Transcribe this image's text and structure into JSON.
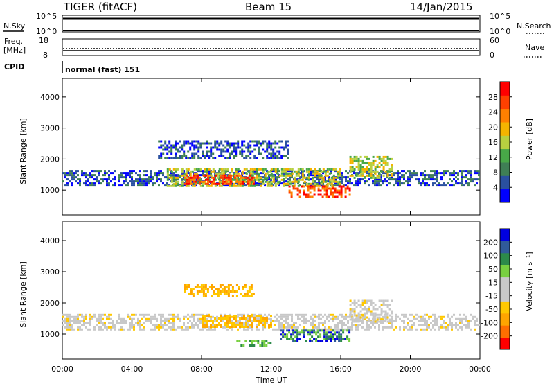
{
  "header": {
    "title": "TIGER (fitACF)",
    "beam": "Beam 15",
    "date": "14/Jan/2015"
  },
  "nsky": {
    "label": "N.Sky",
    "ticks": [
      "10^5",
      "10^0"
    ],
    "right_label": "N.Search",
    "right_ticks": [
      "10^5",
      "10^0"
    ]
  },
  "freq": {
    "label": "Freq.",
    "unit": "[MHz]",
    "ticks": [
      "18",
      "8"
    ],
    "right_label": "Nave",
    "right_ticks": [
      "60",
      "0"
    ]
  },
  "cpid": {
    "label": "CPID",
    "mode": "normal (fast) 151"
  },
  "xaxis": {
    "label": "Time UT",
    "ticks": [
      "00:00",
      "04:00",
      "08:00",
      "12:00",
      "16:00",
      "20:00",
      "00:00"
    ]
  },
  "colors": {
    "power_scale": [
      "#0000ff",
      "#2a50a0",
      "#3f7f55",
      "#48a848",
      "#b8d040",
      "#f4b400",
      "#ff8000",
      "#ff4000",
      "#ff0000"
    ],
    "velocity_scale": [
      "#ff0000",
      "#ff6e00",
      "#ffa500",
      "#ffc800",
      "#c8c8c8",
      "#c8c8c8",
      "#78d040",
      "#2c8a4a",
      "#305a9a",
      "#0000e0"
    ]
  },
  "chart_data": [
    {
      "type": "heatmap",
      "name": "power-panel",
      "ylabel": "Slant Range [km]",
      "yticks": [
        "1000",
        "2000",
        "3000",
        "4000"
      ],
      "ylim": [
        200,
        4600
      ],
      "xlim": [
        0,
        24
      ],
      "xticks_hours": [
        0,
        4,
        8,
        12,
        16,
        20,
        24
      ],
      "colorbar": {
        "label": "Power [dB]",
        "ticks": [
          "4",
          "8",
          "12",
          "16",
          "20",
          "24",
          "28"
        ],
        "range": [
          0,
          30
        ]
      },
      "regions": [
        {
          "t0": 0.0,
          "t1": 24.0,
          "r0": 1150,
          "r1": 1650,
          "level": "low"
        },
        {
          "t0": 6.0,
          "t1": 16.0,
          "r0": 1100,
          "r1": 1700,
          "level": "mid"
        },
        {
          "t0": 7.0,
          "t1": 11.0,
          "r0": 1200,
          "r1": 1500,
          "level": "high"
        },
        {
          "t0": 13.0,
          "t1": 16.5,
          "r0": 800,
          "r1": 1150,
          "level": "high"
        },
        {
          "t0": 16.5,
          "t1": 19.0,
          "r0": 1400,
          "r1": 2100,
          "level": "mid"
        },
        {
          "t0": 5.5,
          "t1": 13.0,
          "r0": 2050,
          "r1": 2600,
          "level": "low"
        }
      ]
    },
    {
      "type": "heatmap",
      "name": "velocity-panel",
      "ylabel": "Slant Range [km]",
      "yticks": [
        "1000",
        "2000",
        "3000",
        "4000"
      ],
      "ylim": [
        200,
        4600
      ],
      "xlim": [
        0,
        24
      ],
      "xticks_hours": [
        0,
        4,
        8,
        12,
        16,
        20,
        24
      ],
      "colorbar": {
        "label": "Velocity [m s⁻¹]",
        "ticks": [
          "-200",
          "-100",
          "-50",
          "-15",
          "15",
          "50",
          "100",
          "200"
        ],
        "range": [
          -250,
          250
        ]
      },
      "regions": [
        {
          "t0": 0.0,
          "t1": 24.0,
          "r0": 1150,
          "r1": 1650,
          "level": "ground"
        },
        {
          "t0": 8.0,
          "t1": 12.0,
          "r0": 1200,
          "r1": 1600,
          "level": "toward_small"
        },
        {
          "t0": 12.5,
          "t1": 16.5,
          "r0": 750,
          "r1": 1150,
          "level": "away_large"
        },
        {
          "t0": 10.0,
          "t1": 12.0,
          "r0": 600,
          "r1": 800,
          "level": "away_small"
        },
        {
          "t0": 16.5,
          "t1": 19.0,
          "r0": 1400,
          "r1": 2100,
          "level": "ground"
        },
        {
          "t0": 7.0,
          "t1": 11.0,
          "r0": 2200,
          "r1": 2600,
          "level": "toward_small"
        }
      ]
    }
  ]
}
